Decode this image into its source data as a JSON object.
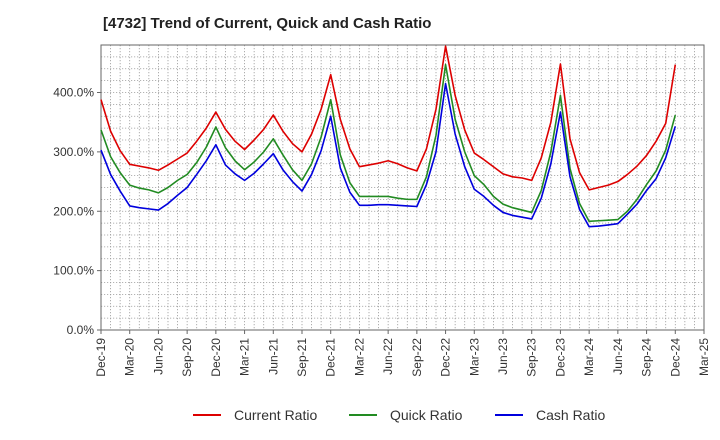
{
  "chart_data": {
    "type": "line",
    "title": "[4732]  Trend of Current, Quick and Cash Ratio",
    "xlabel": "",
    "ylabel": "",
    "ylim": [
      0,
      480
    ],
    "y_ticks": [
      "0.0%",
      "100.0%",
      "200.0%",
      "300.0%",
      "400.0%"
    ],
    "y_tick_values": [
      0,
      100,
      200,
      300,
      400
    ],
    "x_tick_labels": [
      "Dec-19",
      "Mar-20",
      "Jun-20",
      "Sep-20",
      "Dec-20",
      "Mar-21",
      "Jun-21",
      "Sep-21",
      "Dec-21",
      "Mar-22",
      "Jun-22",
      "Sep-22",
      "Dec-22",
      "Mar-23",
      "Jun-23",
      "Sep-23",
      "Dec-23",
      "Mar-24",
      "Jun-24",
      "Sep-24",
      "Dec-24",
      "Mar-25"
    ],
    "grid": true,
    "legend_position": "bottom",
    "x": [
      "Dec-19",
      "Jan-20",
      "Feb-20",
      "Mar-20",
      "Apr-20",
      "May-20",
      "Jun-20",
      "Jul-20",
      "Aug-20",
      "Sep-20",
      "Oct-20",
      "Nov-20",
      "Dec-20",
      "Jan-21",
      "Feb-21",
      "Mar-21",
      "Apr-21",
      "May-21",
      "Jun-21",
      "Jul-21",
      "Aug-21",
      "Sep-21",
      "Oct-21",
      "Nov-21",
      "Dec-21",
      "Jan-22",
      "Feb-22",
      "Mar-22",
      "Apr-22",
      "May-22",
      "Jun-22",
      "Jul-22",
      "Aug-22",
      "Sep-22",
      "Oct-22",
      "Nov-22",
      "Dec-22",
      "Jan-23",
      "Feb-23",
      "Mar-23",
      "Apr-23",
      "May-23",
      "Jun-23",
      "Jul-23",
      "Aug-23",
      "Sep-23",
      "Oct-23",
      "Nov-23",
      "Dec-23",
      "Jan-24",
      "Feb-24",
      "Mar-24",
      "Apr-24",
      "May-24",
      "Jun-24",
      "Jul-24",
      "Aug-24",
      "Sep-24",
      "Oct-24",
      "Nov-24",
      "Dec-24"
    ],
    "series": [
      {
        "name": "Current Ratio",
        "color": "#dd0000",
        "values": [
          388,
          335,
          302,
          279,
          276,
          273,
          269,
          278,
          288,
          298,
          318,
          340,
          367,
          338,
          318,
          304,
          320,
          338,
          362,
          335,
          314,
          300,
          330,
          372,
          430,
          355,
          305,
          275,
          278,
          281,
          285,
          280,
          273,
          268,
          305,
          372,
          478,
          395,
          337,
          298,
          287,
          275,
          263,
          258,
          256,
          252,
          290,
          350,
          448,
          322,
          265,
          236,
          240,
          244,
          250,
          262,
          276,
          294,
          318,
          348,
          447
        ]
      },
      {
        "name": "Quick Ratio",
        "color": "#228b22",
        "values": [
          337,
          292,
          265,
          244,
          239,
          236,
          231,
          240,
          252,
          262,
          282,
          308,
          342,
          307,
          285,
          270,
          283,
          300,
          322,
          295,
          270,
          252,
          280,
          325,
          388,
          295,
          248,
          225,
          225,
          225,
          225,
          222,
          220,
          220,
          258,
          328,
          447,
          355,
          300,
          260,
          245,
          225,
          212,
          206,
          202,
          198,
          235,
          300,
          395,
          272,
          213,
          183,
          184,
          185,
          186,
          200,
          220,
          245,
          268,
          303,
          362
        ]
      },
      {
        "name": "Cash Ratio",
        "color": "#0000dd",
        "values": [
          303,
          262,
          234,
          209,
          206,
          204,
          202,
          213,
          227,
          240,
          262,
          285,
          312,
          278,
          263,
          252,
          264,
          280,
          297,
          270,
          250,
          234,
          262,
          302,
          360,
          273,
          232,
          210,
          210,
          211,
          211,
          210,
          209,
          208,
          245,
          300,
          415,
          330,
          275,
          237,
          225,
          210,
          198,
          193,
          190,
          187,
          222,
          280,
          367,
          258,
          203,
          174,
          175,
          177,
          179,
          195,
          212,
          235,
          255,
          290,
          343
        ]
      }
    ]
  }
}
